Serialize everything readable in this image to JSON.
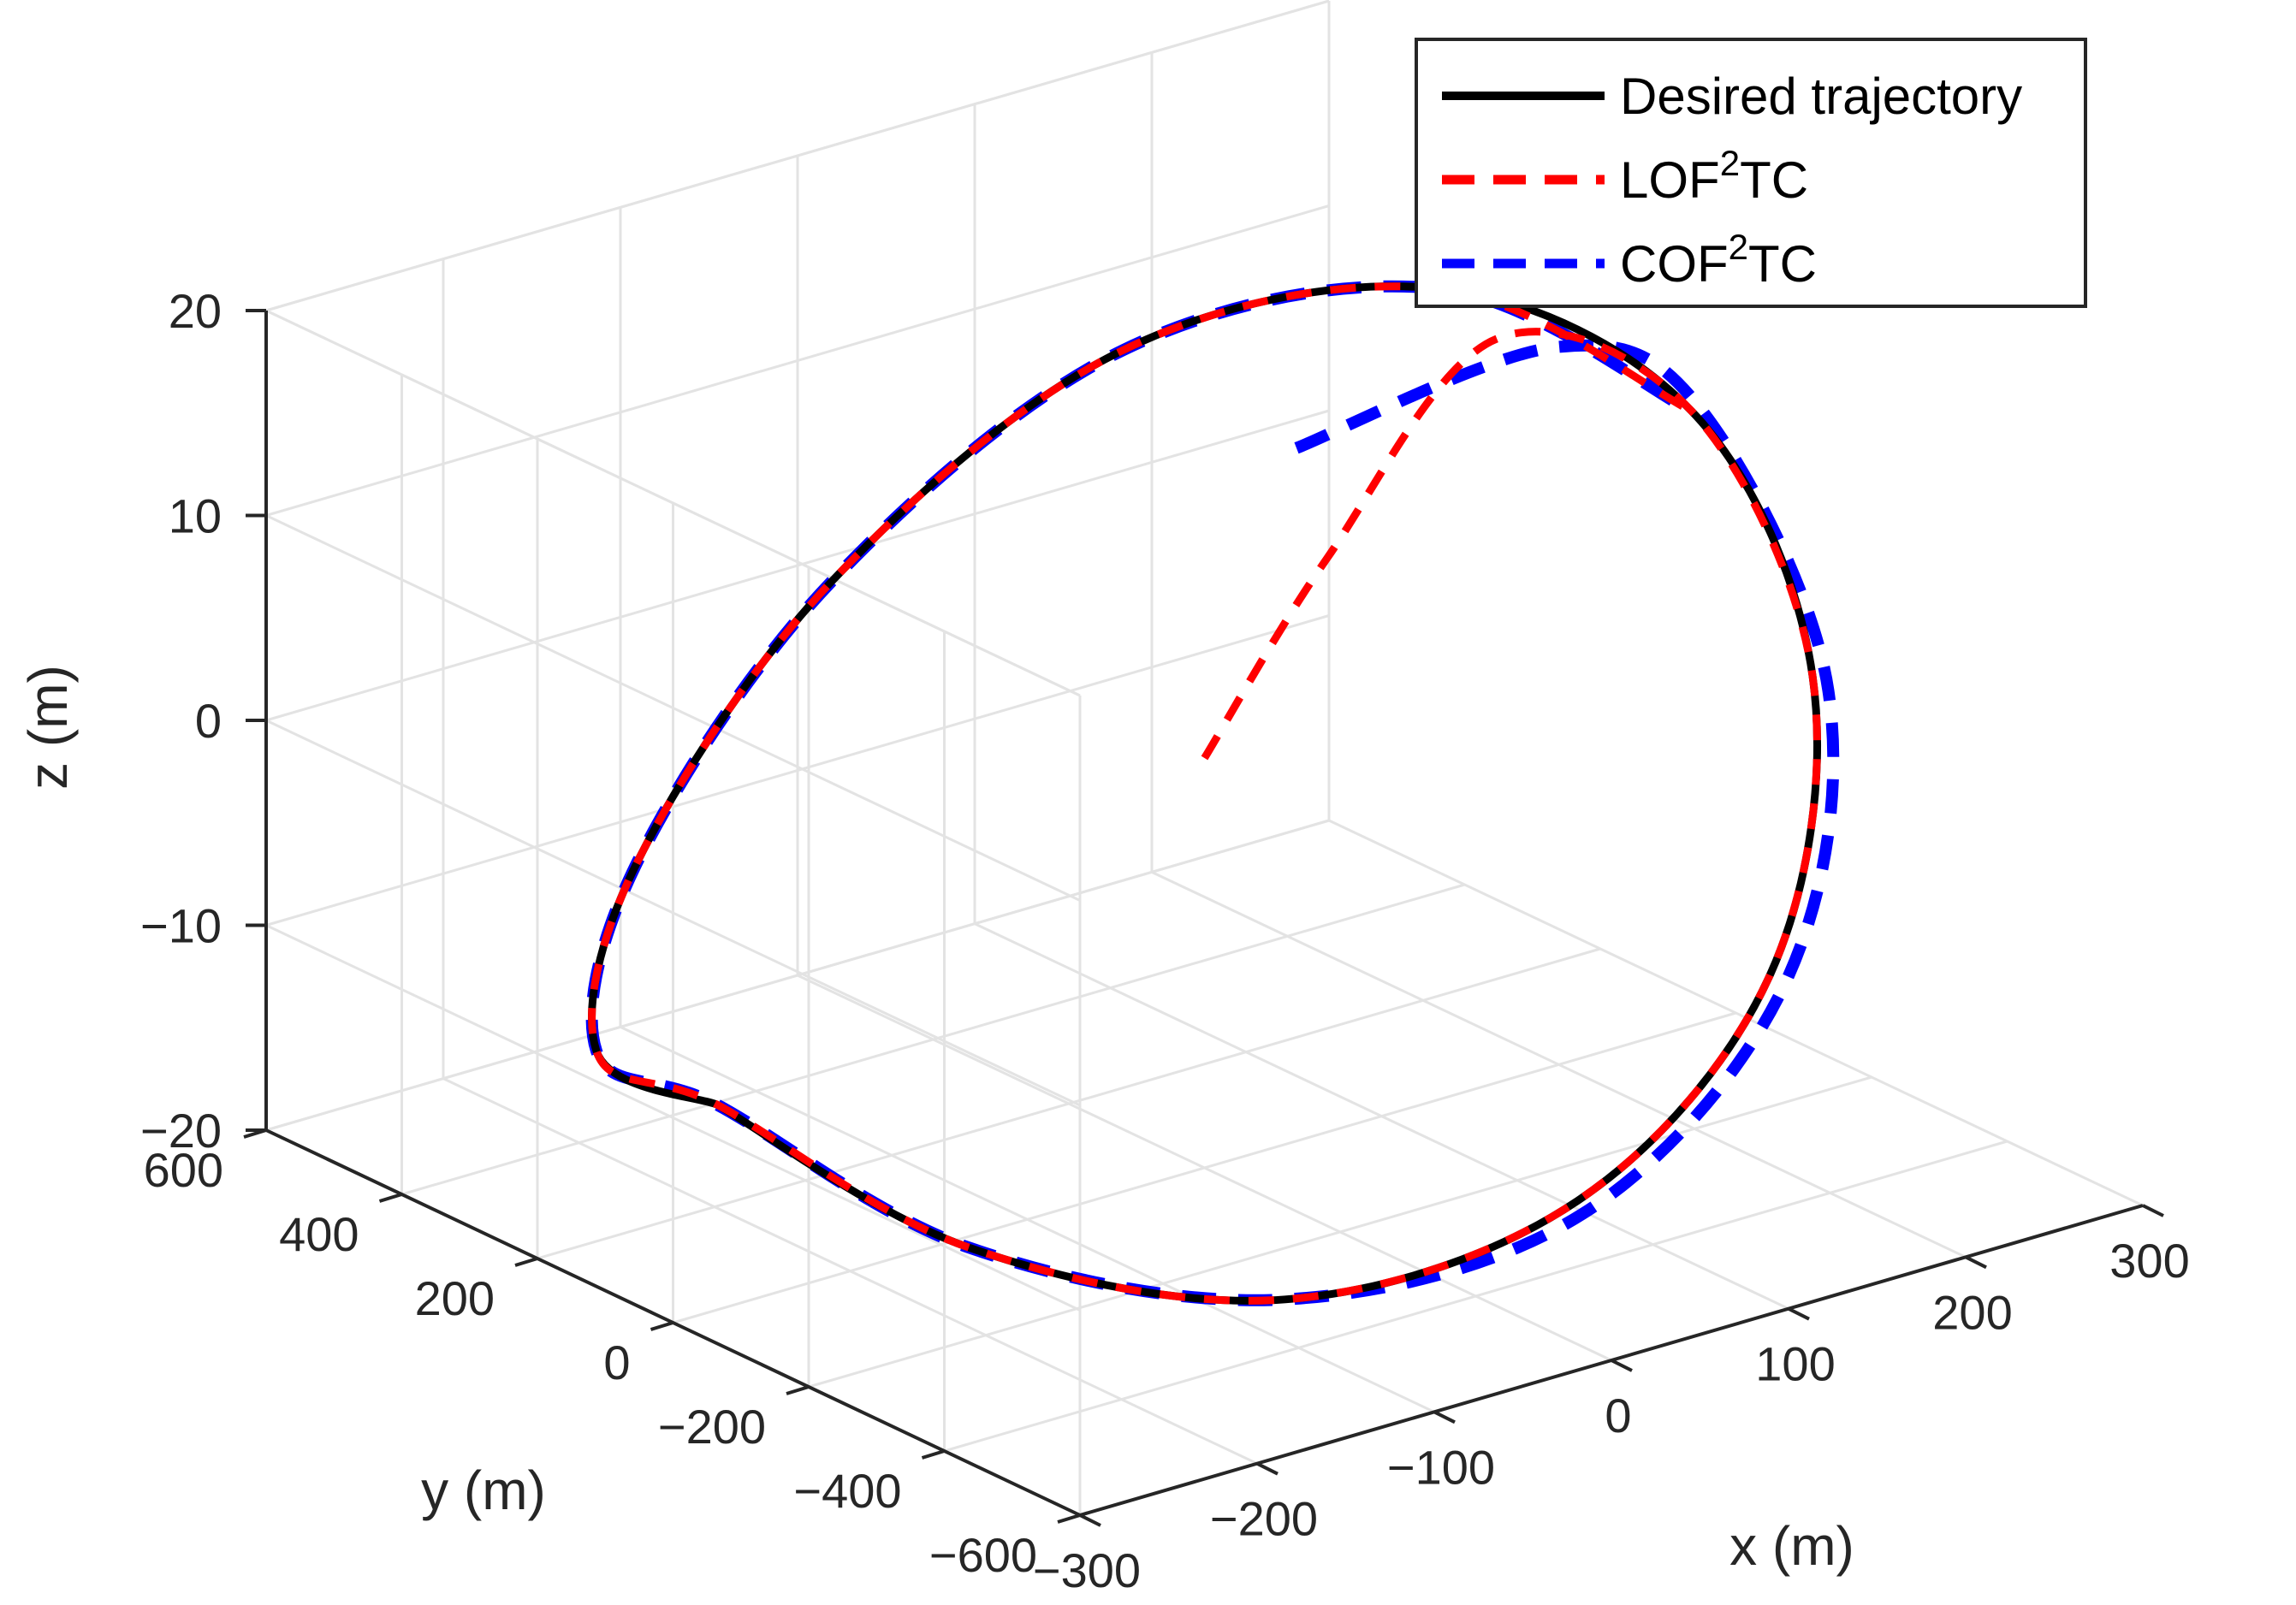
{
  "chart_data": {
    "type": "line3d",
    "xlabel": "x (m)",
    "ylabel": "y (m)",
    "zlabel": "z (m)",
    "xlim": [
      -300,
      300
    ],
    "ylim": [
      -600,
      600
    ],
    "zlim": [
      -20,
      20
    ],
    "xticks": [
      -300,
      -200,
      -100,
      0,
      100,
      200,
      300
    ],
    "yticks": [
      -600,
      -400,
      -200,
      0,
      200,
      400,
      600
    ],
    "zticks": [
      -20,
      -10,
      0,
      10,
      20
    ],
    "xtick_labels": [
      "−300",
      "−200",
      "−100",
      "0",
      "100",
      "200",
      "300"
    ],
    "ytick_labels": [
      "−600",
      "−400",
      "−200",
      "0",
      "200",
      "400",
      "600"
    ],
    "ztick_labels": [
      "−20",
      "−10",
      "0",
      "10",
      "20"
    ],
    "grid": true,
    "legend_position": "top-right",
    "series": [
      {
        "name": "Desired trajectory",
        "legend_base": "Desired trajectory",
        "color": "#000000",
        "style": "solid",
        "points": [
          [
            -275,
            0,
            -10
          ],
          [
            -238,
            275,
            -12.6
          ],
          [
            -137,
            477,
            -9
          ],
          [
            0,
            550,
            0
          ],
          [
            137,
            477,
            9
          ],
          [
            238,
            275,
            12.6
          ],
          [
            275,
            0,
            10
          ],
          [
            238,
            -275,
            2.3
          ],
          [
            137,
            -477,
            -6.5
          ],
          [
            0,
            -550,
            -13
          ],
          [
            -137,
            -477,
            -15.5
          ],
          [
            -238,
            -275,
            -13.6
          ],
          [
            -275,
            0,
            -10
          ]
        ]
      },
      {
        "name": "LOF2TC",
        "legend_base": "LOF",
        "legend_sup": "2",
        "legend_tail": "TC",
        "color": "#ff0000",
        "style": "dashed",
        "points": [
          [
            0,
            0,
            0
          ],
          [
            100,
            80,
            6
          ],
          [
            230,
            170,
            12
          ],
          [
            275,
            0,
            10
          ],
          [
            238,
            -275,
            2.3
          ],
          [
            137,
            -477,
            -6.5
          ],
          [
            0,
            -550,
            -13
          ],
          [
            -137,
            -477,
            -15.5
          ],
          [
            -238,
            -275,
            -13.6
          ],
          [
            -275,
            0,
            -10
          ],
          [
            -238,
            275,
            -12.6
          ],
          [
            -137,
            477,
            -9
          ],
          [
            0,
            550,
            0
          ],
          [
            137,
            477,
            9
          ],
          [
            238,
            275,
            12.6
          ],
          [
            275,
            0,
            10
          ]
        ]
      },
      {
        "name": "COF2TC",
        "legend_base": "COF",
        "legend_sup": "2",
        "legend_tail": "TC",
        "color": "#0000ff",
        "style": "dashed",
        "points": [
          [
            140,
            230,
            8
          ],
          [
            260,
            160,
            11
          ],
          [
            280,
            0,
            10
          ],
          [
            245,
            -280,
            1.5
          ],
          [
            142,
            -485,
            -7
          ],
          [
            0,
            -558,
            -13.5
          ],
          [
            -137,
            -477,
            -15.5
          ],
          [
            -238,
            -275,
            -13.6
          ],
          [
            -275,
            0,
            -10
          ],
          [
            -238,
            275,
            -12.6
          ],
          [
            -137,
            477,
            -9
          ],
          [
            0,
            550,
            0
          ],
          [
            137,
            477,
            9
          ],
          [
            238,
            275,
            12.6
          ],
          [
            275,
            0,
            10
          ]
        ]
      }
    ]
  }
}
